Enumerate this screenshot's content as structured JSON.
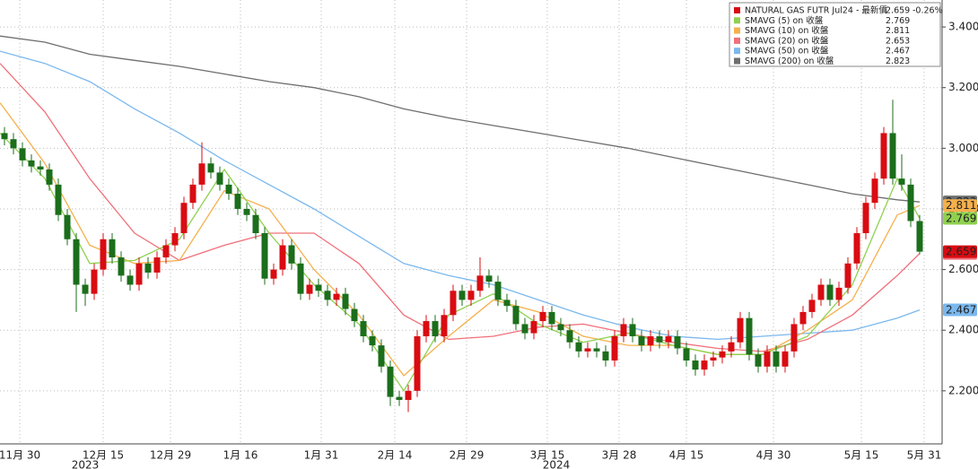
{
  "chart_data": {
    "type": "candlestick",
    "name": "NATURAL GAS FUTR Jul24 - 最新價",
    "change": "-0.26%",
    "up_color": "#d90c12",
    "down_color": "#1b6e1b",
    "x": [
      0,
      1,
      2,
      3,
      4,
      5,
      6,
      7,
      8,
      9,
      10,
      11,
      12,
      13,
      14,
      15,
      16,
      17,
      18,
      19,
      20,
      21,
      22,
      23,
      24,
      25,
      26,
      27,
      28,
      29,
      30,
      31,
      32,
      33,
      34,
      35,
      36,
      37,
      38,
      39,
      40,
      41,
      42,
      43,
      44,
      45,
      46,
      47,
      48,
      49,
      50,
      51,
      52,
      53,
      54,
      55,
      56,
      57,
      58,
      59,
      60,
      61,
      62,
      63,
      64,
      65,
      66,
      67,
      68,
      69,
      70,
      71,
      72,
      73,
      74,
      75,
      76,
      77,
      78,
      79,
      80,
      81,
      82,
      83,
      84,
      85,
      86,
      87,
      88,
      89,
      90,
      91,
      92,
      93,
      94,
      95,
      96,
      97,
      98,
      99,
      100,
      101,
      102
    ],
    "open": [
      3.05,
      3.03,
      3.0,
      2.96,
      2.94,
      2.93,
      2.88,
      2.78,
      2.7,
      2.55,
      2.52,
      2.6,
      2.7,
      2.64,
      2.58,
      2.55,
      2.62,
      2.59,
      2.64,
      2.68,
      2.72,
      2.82,
      2.88,
      2.95,
      2.92,
      2.88,
      2.85,
      2.8,
      2.78,
      2.72,
      2.57,
      2.6,
      2.68,
      2.62,
      2.52,
      2.55,
      2.53,
      2.5,
      2.52,
      2.47,
      2.43,
      2.38,
      2.35,
      2.28,
      2.18,
      2.17,
      2.2,
      2.38,
      2.43,
      2.38,
      2.45,
      2.53,
      2.5,
      2.53,
      2.58,
      2.56,
      2.5,
      2.48,
      2.42,
      2.39,
      2.43,
      2.46,
      2.42,
      2.4,
      2.36,
      2.33,
      2.34,
      2.33,
      2.3,
      2.38,
      2.42,
      2.38,
      2.35,
      2.38,
      2.36,
      2.38,
      2.34,
      2.3,
      2.27,
      2.3,
      2.31,
      2.33,
      2.36,
      2.44,
      2.32,
      2.28,
      2.33,
      2.28,
      2.33,
      2.42,
      2.46,
      2.5,
      2.55,
      2.5,
      2.54,
      2.62,
      2.72,
      2.82,
      2.9,
      3.05,
      2.9,
      2.88,
      2.76
    ],
    "high": [
      3.07,
      3.05,
      3.02,
      2.98,
      2.96,
      2.95,
      2.9,
      2.8,
      2.72,
      2.57,
      2.62,
      2.72,
      2.72,
      2.66,
      2.6,
      2.64,
      2.64,
      2.66,
      2.7,
      2.74,
      2.84,
      2.9,
      3.02,
      2.97,
      2.94,
      2.9,
      2.87,
      2.82,
      2.8,
      2.74,
      2.62,
      2.7,
      2.7,
      2.64,
      2.57,
      2.57,
      2.55,
      2.54,
      2.54,
      2.49,
      2.45,
      2.4,
      2.37,
      2.3,
      2.2,
      2.22,
      2.4,
      2.45,
      2.45,
      2.47,
      2.55,
      2.55,
      2.55,
      2.64,
      2.6,
      2.58,
      2.52,
      2.5,
      2.44,
      2.45,
      2.48,
      2.48,
      2.44,
      2.42,
      2.38,
      2.36,
      2.36,
      2.35,
      2.4,
      2.44,
      2.44,
      2.4,
      2.4,
      2.4,
      2.4,
      2.4,
      2.36,
      2.32,
      2.32,
      2.33,
      2.35,
      2.38,
      2.46,
      2.46,
      2.34,
      2.35,
      2.35,
      2.35,
      2.44,
      2.48,
      2.52,
      2.57,
      2.57,
      2.56,
      2.64,
      2.74,
      2.84,
      2.92,
      3.07,
      3.16,
      2.98,
      2.9,
      2.78
    ],
    "low": [
      3.01,
      2.98,
      2.94,
      2.92,
      2.91,
      2.86,
      2.76,
      2.68,
      2.46,
      2.48,
      2.5,
      2.58,
      2.62,
      2.56,
      2.53,
      2.53,
      2.57,
      2.57,
      2.62,
      2.66,
      2.7,
      2.8,
      2.86,
      2.9,
      2.86,
      2.83,
      2.78,
      2.76,
      2.7,
      2.55,
      2.55,
      2.58,
      2.6,
      2.5,
      2.5,
      2.51,
      2.48,
      2.48,
      2.45,
      2.41,
      2.36,
      2.33,
      2.26,
      2.15,
      2.15,
      2.13,
      2.18,
      2.36,
      2.36,
      2.36,
      2.43,
      2.48,
      2.48,
      2.51,
      2.54,
      2.48,
      2.46,
      2.4,
      2.37,
      2.37,
      2.41,
      2.4,
      2.38,
      2.34,
      2.31,
      2.31,
      2.31,
      2.28,
      2.28,
      2.36,
      2.36,
      2.33,
      2.33,
      2.34,
      2.34,
      2.32,
      2.28,
      2.25,
      2.25,
      2.28,
      2.29,
      2.31,
      2.34,
      2.3,
      2.26,
      2.26,
      2.26,
      2.26,
      2.31,
      2.4,
      2.44,
      2.48,
      2.48,
      2.48,
      2.52,
      2.6,
      2.7,
      2.8,
      2.88,
      2.88,
      2.86,
      2.74,
      2.65
    ],
    "close": [
      3.03,
      3.0,
      2.96,
      2.94,
      2.93,
      2.88,
      2.78,
      2.7,
      2.55,
      2.52,
      2.6,
      2.7,
      2.64,
      2.58,
      2.55,
      2.62,
      2.59,
      2.64,
      2.68,
      2.72,
      2.82,
      2.88,
      2.95,
      2.92,
      2.88,
      2.85,
      2.8,
      2.78,
      2.72,
      2.57,
      2.6,
      2.68,
      2.62,
      2.52,
      2.55,
      2.53,
      2.5,
      2.52,
      2.47,
      2.43,
      2.38,
      2.35,
      2.28,
      2.18,
      2.17,
      2.2,
      2.38,
      2.43,
      2.38,
      2.45,
      2.53,
      2.5,
      2.53,
      2.58,
      2.56,
      2.5,
      2.48,
      2.42,
      2.39,
      2.43,
      2.46,
      2.42,
      2.4,
      2.36,
      2.33,
      2.34,
      2.33,
      2.3,
      2.38,
      2.42,
      2.38,
      2.35,
      2.38,
      2.36,
      2.38,
      2.34,
      2.3,
      2.27,
      2.3,
      2.31,
      2.33,
      2.36,
      2.44,
      2.32,
      2.28,
      2.33,
      2.28,
      2.33,
      2.42,
      2.46,
      2.5,
      2.55,
      2.5,
      2.54,
      2.62,
      2.72,
      2.82,
      2.9,
      3.05,
      2.9,
      2.88,
      2.76,
      2.659
    ],
    "series": [
      {
        "name": "SMAVG (200)  on 收盤",
        "color": "#6e6e6e",
        "x": [
          -0.5,
          4.5,
          9.5,
          14.5,
          19.5,
          24.5,
          29.5,
          34.5,
          39.5,
          44.5,
          49.5,
          54.5,
          59.5,
          64.5,
          69.5,
          74.5,
          79.5,
          84.5,
          89.5,
          94.5,
          99.5,
          102
        ],
        "values": [
          3.37,
          3.35,
          3.31,
          3.29,
          3.27,
          3.245,
          3.22,
          3.2,
          3.17,
          3.13,
          3.1,
          3.075,
          3.05,
          3.025,
          3.0,
          2.97,
          2.94,
          2.91,
          2.88,
          2.85,
          2.83,
          2.823
        ]
      },
      {
        "name": "SMAVG (50)  on 收盤",
        "color": "#7ab8ee",
        "x": [
          -0.5,
          4.5,
          9.5,
          14.5,
          19.5,
          24.5,
          29.5,
          34.5,
          39.5,
          44.5,
          49.5,
          54.5,
          59.5,
          64.5,
          69.5,
          74.5,
          79.5,
          84.5,
          89.5,
          94.5,
          99.5,
          102
        ],
        "values": [
          3.32,
          3.28,
          3.22,
          3.13,
          3.05,
          2.96,
          2.88,
          2.8,
          2.71,
          2.62,
          2.58,
          2.55,
          2.5,
          2.45,
          2.41,
          2.38,
          2.37,
          2.38,
          2.39,
          2.4,
          2.44,
          2.467
        ]
      },
      {
        "name": "SMAVG (20)  on 收盤",
        "color": "#f0707a",
        "x": [
          -0.5,
          4.5,
          9.5,
          14.5,
          19.5,
          24.5,
          29.5,
          34.5,
          39.5,
          44.5,
          49.5,
          54.5,
          59.5,
          64.5,
          69.5,
          74.5,
          79.5,
          84.5,
          89.5,
          94.5,
          99.5,
          102
        ],
        "values": [
          3.28,
          3.12,
          2.9,
          2.72,
          2.63,
          2.68,
          2.72,
          2.72,
          2.62,
          2.45,
          2.37,
          2.38,
          2.41,
          2.42,
          2.39,
          2.36,
          2.34,
          2.33,
          2.37,
          2.45,
          2.58,
          2.653
        ]
      },
      {
        "name": "SMAVG (10)  on 收盤",
        "color": "#f5b04c",
        "x": [
          -0.5,
          4.5,
          9.5,
          14.5,
          19.5,
          24.5,
          29.5,
          34.5,
          39.5,
          44.5,
          49.5,
          54.5,
          59.5,
          64.5,
          69.5,
          74.5,
          79.5,
          84.5,
          89.5,
          94.5,
          99.5,
          102
        ],
        "values": [
          3.15,
          2.95,
          2.68,
          2.62,
          2.63,
          2.86,
          2.8,
          2.6,
          2.45,
          2.25,
          2.38,
          2.5,
          2.46,
          2.38,
          2.35,
          2.35,
          2.32,
          2.32,
          2.4,
          2.5,
          2.78,
          2.811
        ]
      },
      {
        "name": "SMAVG (5)  on 收盤",
        "color": "#8fd14f",
        "x": [
          -0.5,
          4.5,
          9.5,
          14.5,
          19.5,
          24.5,
          29.5,
          34.5,
          39.5,
          44.5,
          49.5,
          54.5,
          59.5,
          64.5,
          69.5,
          74.5,
          79.5,
          84.5,
          89.5,
          94.5,
          99.5,
          102
        ],
        "values": [
          3.05,
          2.9,
          2.62,
          2.63,
          2.7,
          2.93,
          2.72,
          2.55,
          2.42,
          2.2,
          2.45,
          2.52,
          2.42,
          2.36,
          2.39,
          2.35,
          2.32,
          2.32,
          2.38,
          2.55,
          2.9,
          2.769
        ]
      }
    ],
    "xlim": [
      -0.5,
      104.5
    ],
    "xticks": [
      {
        "value": 1.7,
        "label": "11月 30"
      },
      {
        "value": 11,
        "label": "12月 15"
      },
      {
        "value": 18.5,
        "label": "12月 29"
      },
      {
        "value": 26.3,
        "label": "1月 16"
      },
      {
        "value": 35.3,
        "label": "1月 31"
      },
      {
        "value": 43.5,
        "label": "2月 14"
      },
      {
        "value": 51.5,
        "label": "2月 29"
      },
      {
        "value": 60.5,
        "label": "3月 15"
      },
      {
        "value": 68.5,
        "label": "3月 28"
      },
      {
        "value": 76,
        "label": "4月 15"
      },
      {
        "value": 85.7,
        "label": "4月 30"
      },
      {
        "value": 95.5,
        "label": "5月 15"
      },
      {
        "value": 102.5,
        "label": "5月 31"
      }
    ],
    "years": [
      {
        "text": "2023",
        "x": 9
      },
      {
        "text": "2024",
        "x": 61.5
      }
    ],
    "ylim": [
      2.025,
      3.489
    ],
    "yticks": [
      {
        "value": 2.2,
        "label": "2.200"
      },
      {
        "value": 2.4,
        "label": "2.400"
      },
      {
        "value": 2.6,
        "label": "2.600"
      },
      {
        "value": 2.8,
        "label": "2.800"
      },
      {
        "value": 3.0,
        "label": "3.000"
      },
      {
        "value": 3.2,
        "label": "3.200"
      },
      {
        "value": 3.4,
        "label": "3.400"
      }
    ],
    "grid": true
  }
}
